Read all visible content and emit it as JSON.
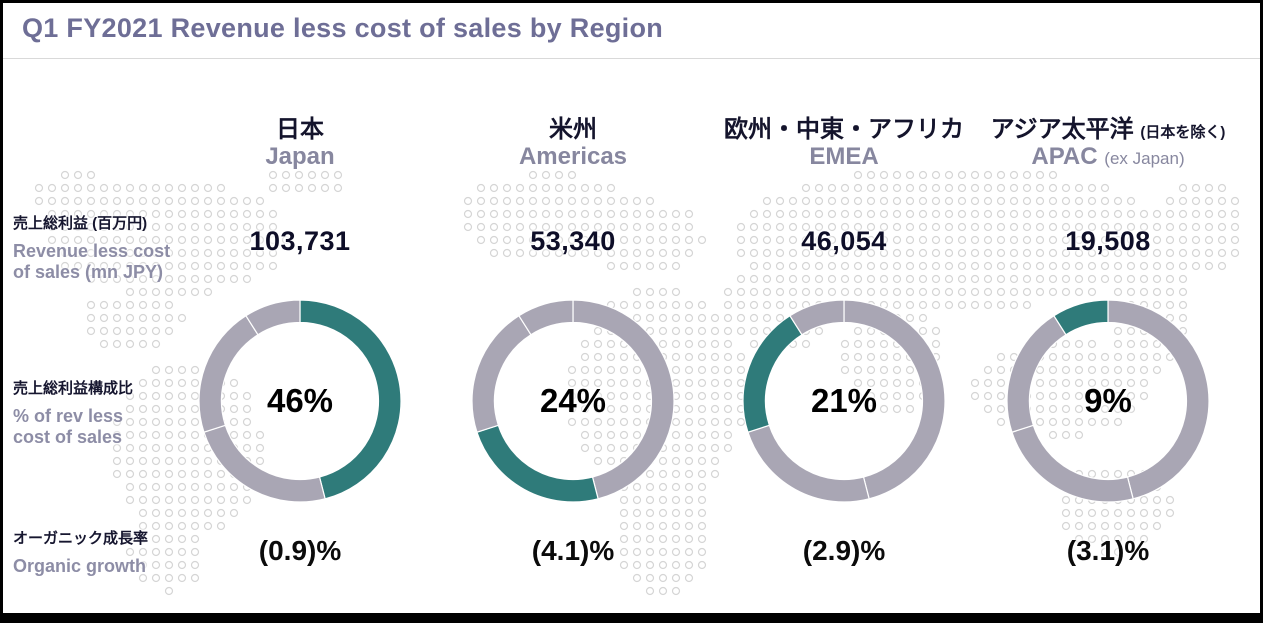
{
  "title": "Q1 FY2021 Revenue less cost of sales by Region",
  "rows": {
    "revenue": {
      "label_jp": "売上総利益 (百万円)",
      "label_en_line1": "Revenue less cost",
      "label_en_line2": "of sales (mn JPY)"
    },
    "share": {
      "label_jp": "売上総利益構成比",
      "label_en_line1": "% of rev less",
      "label_en_line2": "cost of sales"
    },
    "growth": {
      "label_jp": "オーガニック成長率",
      "label_en_line1": "Organic growth"
    }
  },
  "regions": [
    {
      "name_jp": "日本",
      "name_en": "Japan",
      "revenue": "103,731",
      "share_pct": 46,
      "share_label": "46%",
      "growth": "(0.9)%"
    },
    {
      "name_jp": "米州",
      "name_en": "Americas",
      "revenue": "53,340",
      "share_pct": 24,
      "share_label": "24%",
      "growth": "(4.1)%"
    },
    {
      "name_jp": "欧州・中東・アフリカ",
      "name_en": "EMEA",
      "revenue": "46,054",
      "share_pct": 21,
      "share_label": "21%",
      "growth": "(2.9)%"
    },
    {
      "name_jp": "アジア太平洋",
      "name_jp_suffix": "(日本を除く)",
      "name_en": "APAC",
      "name_en_suffix": "(ex Japan)",
      "revenue": "19,508",
      "share_pct": 9,
      "share_label": "9%",
      "growth": "(3.1)%"
    }
  ],
  "colors": {
    "accent_teal": "#2f7b7a",
    "ring_gray": "#a9a6b4",
    "dot_gray": "#d5d5d5",
    "title_purple": "#6e6e96",
    "frame_black": "#000000"
  },
  "chart_data": {
    "type": "pie",
    "subtype": "donut",
    "title": "Q1 FY2021 Revenue less cost of sales by Region",
    "categories": [
      "Japan",
      "Americas",
      "EMEA",
      "APAC (ex Japan)"
    ],
    "series": [
      {
        "name": "% of rev less cost of sales",
        "unit": "%",
        "values": [
          46,
          24,
          21,
          9
        ]
      },
      {
        "name": "Revenue less cost of sales",
        "unit": "mn JPY",
        "values": [
          103731,
          53340,
          46054,
          19508
        ]
      },
      {
        "name": "Organic growth",
        "unit": "%",
        "values": [
          -0.9,
          -4.1,
          -2.9,
          -3.1
        ]
      }
    ],
    "layout": "Four donut charts, one per region; every donut shows the same regional split ordered clockwise from 12 o'clock (Japan, Americas, EMEA, APAC) with only that region's slice highlighted in teal, remainder gray; percentage shown in donut center",
    "legend": false,
    "background": "dotted world map pattern"
  }
}
